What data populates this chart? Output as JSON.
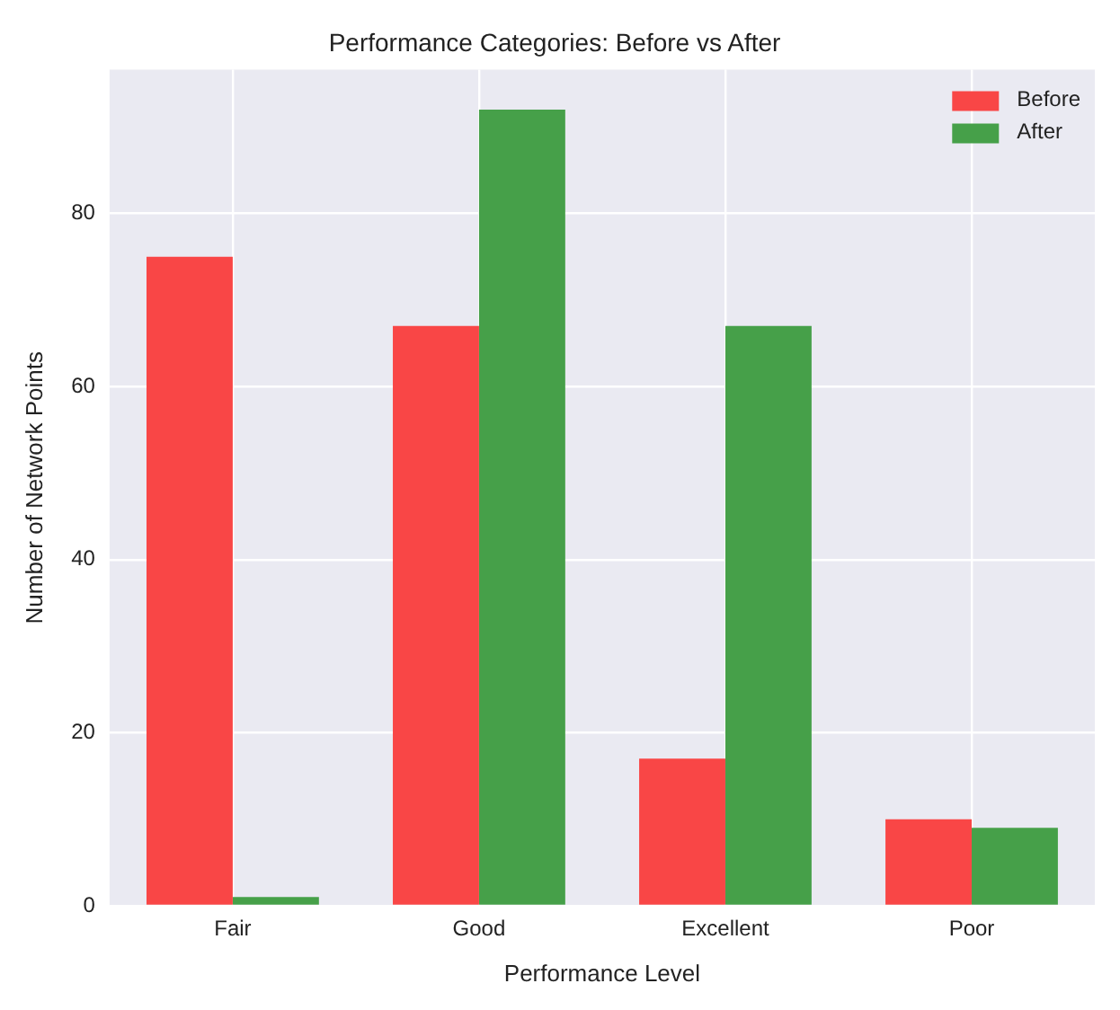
{
  "chart_data": {
    "type": "bar",
    "title": "Performance Categories: Before vs After",
    "xlabel": "Performance Level",
    "ylabel": "Number of Network Points",
    "categories": [
      "Fair",
      "Good",
      "Excellent",
      "Poor"
    ],
    "series": [
      {
        "name": "Before",
        "color": "#f94646",
        "values": [
          75,
          67,
          17,
          10
        ]
      },
      {
        "name": "After",
        "color": "#46a049",
        "values": [
          1,
          92,
          67,
          9
        ]
      }
    ],
    "ylim": [
      0,
      96.6
    ],
    "yticks": [
      0,
      20,
      40,
      60,
      80
    ],
    "grid": true,
    "legend": "top right"
  }
}
